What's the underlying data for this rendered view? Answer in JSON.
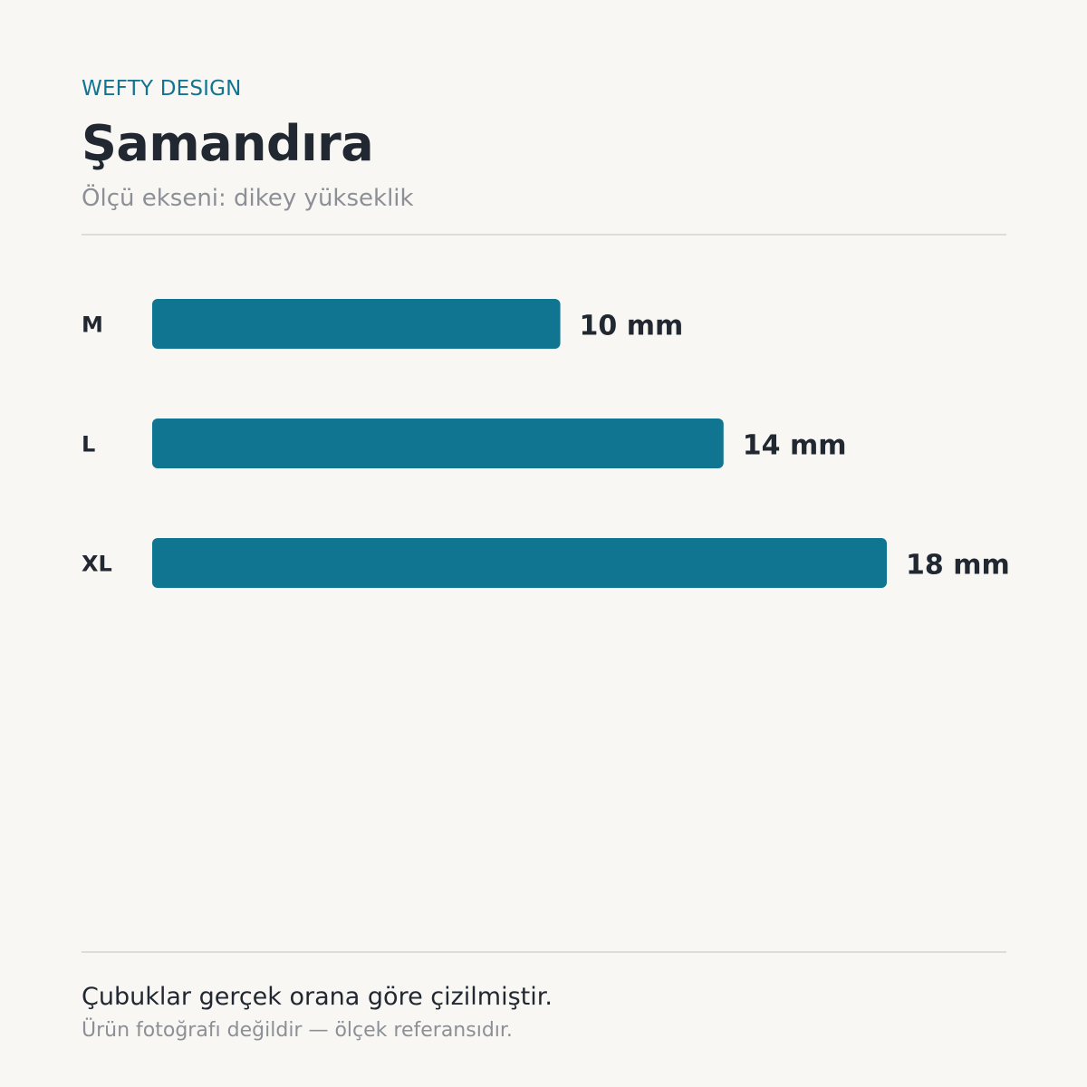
{
  "header": {
    "brand": "WEFTY DESIGN",
    "title": "Şamandıra",
    "subtitle": "Ölçü ekseni: dikey yükseklik"
  },
  "chart_data": {
    "type": "bar",
    "orientation": "horizontal",
    "categories": [
      "M",
      "L",
      "XL"
    ],
    "values": [
      10,
      14,
      18
    ],
    "value_labels": [
      "10 mm",
      "14 mm",
      "18 mm"
    ],
    "unit": "mm",
    "xlim": [
      0,
      18
    ],
    "grid": false,
    "legend": "none",
    "bar_color": "#107591"
  },
  "footer": {
    "note": "Çubuklar gerçek orana göre çizilmiştir.",
    "subnote": "Ürün fotoğrafı değildir — ölçek referansıdır."
  },
  "colors": {
    "accent": "#137491",
    "bar": "#107591",
    "text": "#222831",
    "muted": "#8c9096",
    "background": "#f8f7f4"
  }
}
